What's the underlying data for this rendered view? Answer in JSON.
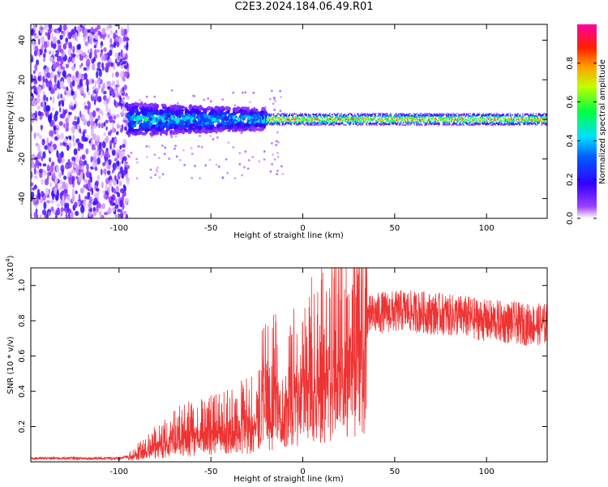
{
  "title": "C2E3.2024.184.06.49.R01",
  "chart_data": [
    {
      "type": "heatmap",
      "xlabel": "Height of straight line (km)",
      "ylabel": "Frequency (Hz)",
      "xlim": [
        -148,
        133
      ],
      "ylim": [
        -50,
        48
      ],
      "xticks": [
        -100,
        -50,
        0,
        50,
        100
      ],
      "yticks": [
        -40,
        -20,
        0,
        20,
        40
      ],
      "colorbar": {
        "label": "Normalized spectral amplitude",
        "range": [
          0,
          1
        ],
        "ticks": [
          "0.0",
          "0.2",
          "0.4",
          "0.6",
          "0.8"
        ],
        "tick_values": [
          0,
          0.2,
          0.4,
          0.6,
          0.8
        ],
        "colormap": [
          "#ffffff",
          "#7f00ff",
          "#0000ff",
          "#00ffff",
          "#00ff00",
          "#ffff00",
          "#ff8000",
          "#ff0000",
          "#ff00ff"
        ]
      },
      "regions": [
        {
          "x_range": [
            -148,
            -95
          ],
          "freq_range": [
            -50,
            48
          ],
          "amplitude": [
            0.0,
            0.15
          ],
          "description_level": "noise"
        },
        {
          "x_range": [
            -95,
            -20
          ],
          "freq_range": [
            -8,
            8
          ],
          "amplitude": [
            0.1,
            0.5
          ]
        },
        {
          "x_range": [
            -20,
            133
          ],
          "freq_range": [
            -3,
            3
          ],
          "amplitude": [
            0.1,
            0.95
          ]
        }
      ]
    },
    {
      "type": "line",
      "xlabel": "Height of straight line (km)",
      "ylabel": "SNR (10 * v/v)",
      "y_multiplier": "(x10",
      "y_multiplier_exp": "4",
      "y_multiplier_close": ")",
      "xlim": [
        -148,
        133
      ],
      "ylim": [
        0,
        1.1
      ],
      "xticks": [
        -100,
        -50,
        0,
        50,
        100
      ],
      "yticks": [
        "0.2",
        "0.4",
        "0.6",
        "0.8",
        "1.0"
      ],
      "ytick_values": [
        0.2,
        0.4,
        0.6,
        0.8,
        1.0
      ],
      "color": "#ee3333",
      "series": [
        {
          "x": [
            -148,
            -120,
            -100,
            -95,
            -90,
            -85,
            -80,
            -75,
            -70,
            -65,
            -60,
            -55,
            -50,
            -45,
            -40,
            -35,
            -30,
            -25,
            -22,
            -20,
            -17,
            -15,
            -12,
            -10,
            -8,
            -5,
            -2,
            0,
            3,
            5,
            8,
            10,
            13,
            15,
            18,
            20,
            25,
            30,
            35,
            40,
            45,
            50,
            55,
            60,
            65,
            70,
            75,
            80,
            85,
            90,
            95,
            100,
            105,
            110,
            115,
            120,
            125,
            133
          ],
          "y": [
            0.02,
            0.02,
            0.02,
            0.03,
            0.06,
            0.09,
            0.12,
            0.15,
            0.17,
            0.19,
            0.2,
            0.21,
            0.22,
            0.23,
            0.24,
            0.26,
            0.28,
            0.3,
            0.45,
            0.5,
            0.35,
            0.7,
            0.3,
            0.32,
            0.42,
            0.5,
            0.52,
            0.55,
            0.58,
            0.62,
            0.6,
            0.63,
            0.64,
            0.7,
            0.72,
            0.74,
            0.77,
            0.8,
            0.82,
            0.84,
            0.85,
            0.85,
            0.86,
            0.85,
            0.85,
            0.84,
            0.84,
            0.83,
            0.83,
            0.82,
            0.81,
            0.8,
            0.8,
            0.79,
            0.79,
            0.78,
            0.78,
            0.78
          ]
        }
      ]
    }
  ]
}
